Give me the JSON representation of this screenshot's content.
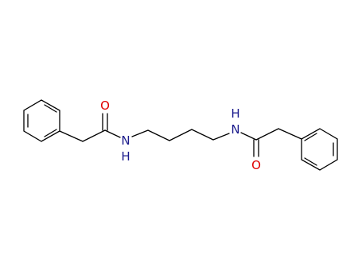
{
  "atoms": [
    {
      "label": "O"
    },
    {
      "label": "N"
    },
    {
      "label": "H"
    },
    {
      "label": "N"
    },
    {
      "label": "H"
    },
    {
      "label": "O"
    }
  ]
}
